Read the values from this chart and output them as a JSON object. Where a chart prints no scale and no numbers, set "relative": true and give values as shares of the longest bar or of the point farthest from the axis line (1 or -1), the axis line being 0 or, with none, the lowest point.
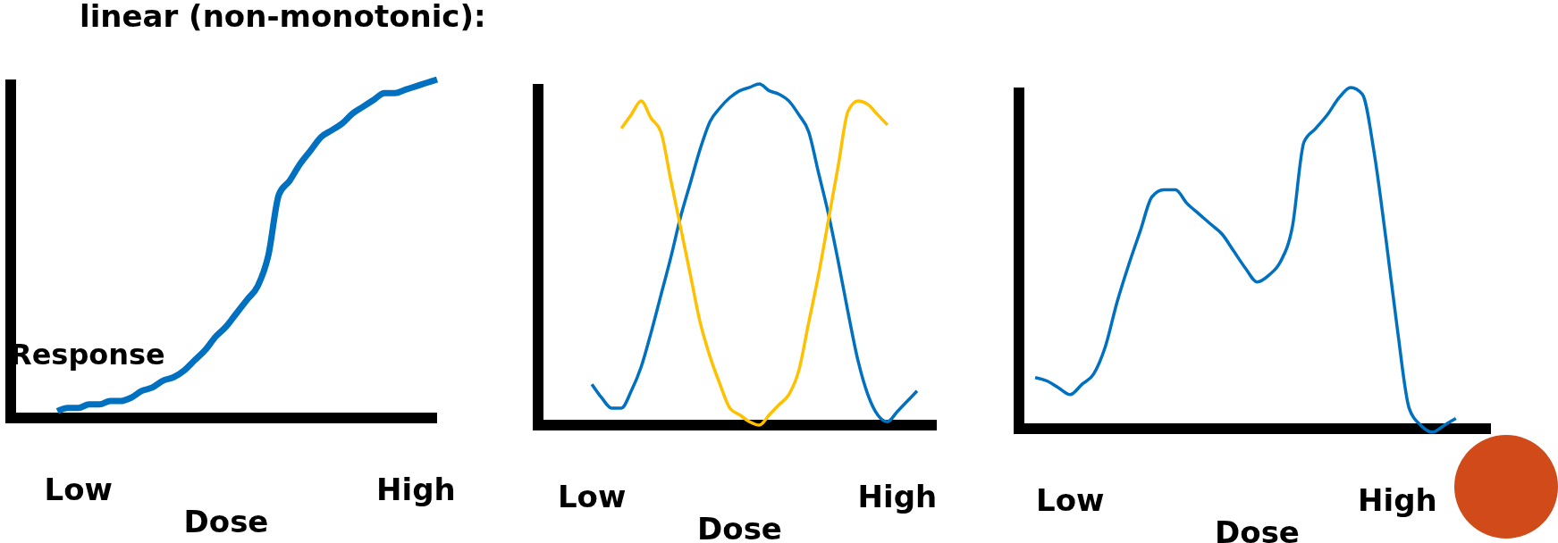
{
  "chart_data": [
    {
      "type": "line",
      "title": "linear (non-monotonic):",
      "ylabel": "Response",
      "xlabel": "Dose",
      "relative": true,
      "categories": [
        null,
        null,
        null,
        null,
        null,
        null,
        "Low",
        null,
        null,
        null,
        null,
        null,
        null,
        null,
        null,
        null,
        null,
        null,
        null,
        null,
        null,
        null,
        null,
        null,
        null,
        null,
        null,
        null,
        null,
        null,
        null,
        null,
        null,
        null,
        null,
        null,
        null,
        null,
        "High",
        null,
        null
      ],
      "series": [
        {
          "color": "#0070c0",
          "values": [
            null,
            null,
            null,
            null,
            0.02,
            0.03,
            0.03,
            0.04,
            0.04,
            0.05,
            0.05,
            0.06,
            0.08,
            0.09,
            0.11,
            0.12,
            0.14,
            0.17,
            0.2,
            0.24,
            0.27,
            0.31,
            0.35,
            0.39,
            0.48,
            0.66,
            0.7,
            0.75,
            0.79,
            0.83,
            0.85,
            0.87,
            0.9,
            0.92,
            0.94,
            0.96,
            0.96,
            0.97,
            0.98,
            0.99,
            1.0
          ]
        }
      ]
    },
    {
      "type": "line",
      "xlabel": "Dose",
      "relative": true,
      "categories": [
        null,
        null,
        null,
        null,
        null,
        "Low",
        null,
        null,
        null,
        null,
        null,
        null,
        null,
        null,
        null,
        null,
        null,
        null,
        null,
        null,
        null,
        null,
        null,
        null,
        null,
        null,
        null,
        null,
        null,
        null,
        null,
        null,
        null,
        null,
        null,
        null,
        "High",
        null,
        null,
        null,
        null
      ],
      "series": [
        {
          "color": "#0070c0",
          "values": [
            null,
            null,
            null,
            null,
            null,
            0.12,
            0.08,
            0.05,
            0.05,
            0.1,
            0.17,
            0.27,
            0.38,
            0.49,
            0.61,
            0.71,
            0.81,
            0.89,
            0.93,
            0.96,
            0.98,
            0.99,
            1.0,
            0.98,
            0.97,
            0.95,
            0.91,
            0.86,
            0.74,
            0.62,
            0.48,
            0.33,
            0.19,
            0.09,
            0.03,
            0.01,
            0.04,
            0.07,
            0.1,
            null,
            null
          ]
        },
        {
          "color": "#ffc000",
          "values": [
            null,
            null,
            null,
            null,
            null,
            null,
            null,
            null,
            0.87,
            0.91,
            0.95,
            0.9,
            0.86,
            0.72,
            0.58,
            0.44,
            0.3,
            0.2,
            0.12,
            0.05,
            0.03,
            0.01,
            0.0,
            0.03,
            0.06,
            0.09,
            0.16,
            0.3,
            0.44,
            0.6,
            0.76,
            0.92,
            0.95,
            0.94,
            0.91,
            0.88,
            null,
            null,
            null,
            null,
            null
          ]
        }
      ]
    },
    {
      "type": "line",
      "xlabel": "Dose",
      "relative": true,
      "categories": [
        null,
        null,
        null,
        null,
        "Low",
        null,
        null,
        null,
        null,
        null,
        null,
        null,
        null,
        null,
        null,
        null,
        null,
        null,
        null,
        null,
        null,
        null,
        null,
        null,
        null,
        null,
        null,
        null,
        null,
        null,
        null,
        null,
        "High",
        null,
        null,
        null,
        null,
        null,
        null,
        null,
        null
      ],
      "series": [
        {
          "color": "#0070c0",
          "values": [
            null,
            0.15,
            0.14,
            0.12,
            0.1,
            0.13,
            0.16,
            0.24,
            0.37,
            0.48,
            0.58,
            0.68,
            0.7,
            0.7,
            0.66,
            0.63,
            0.6,
            0.57,
            0.52,
            0.47,
            0.43,
            0.45,
            0.49,
            0.59,
            0.84,
            0.88,
            0.92,
            0.97,
            1.0,
            0.98,
            0.81,
            0.56,
            0.29,
            0.06,
            0.01,
            -0.01,
            0.01,
            0.03,
            null,
            null,
            null
          ]
        }
      ]
    }
  ]
}
